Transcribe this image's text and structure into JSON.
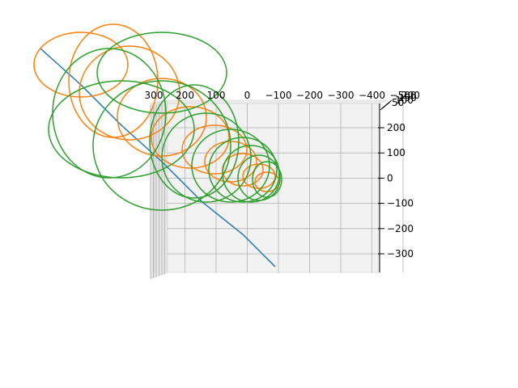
{
  "chart_data": {
    "type": "line",
    "projection": "3d",
    "title": "",
    "xlabel": "",
    "ylabel": "",
    "zlabel": "",
    "grid": true,
    "x_ticks": [
      "300",
      "200",
      "100",
      "0",
      "−100",
      "−200",
      "−300",
      "−400",
      "−500"
    ],
    "z_ticks": [
      "200",
      "100",
      "0",
      "−100",
      "−200",
      "−300"
    ],
    "depth_ticks": [
      "50",
      "100",
      "150",
      "200"
    ],
    "series": [
      {
        "color": "#1f77b4",
        "shape": "straight trajectory",
        "points": [
          [
            340,
            330
          ],
          [
            300,
            290
          ],
          [
            250,
            250
          ],
          [
            200,
            200
          ],
          [
            150,
            155
          ],
          [
            100,
            105
          ],
          [
            50,
            60
          ]
        ]
      },
      {
        "color": "#ff7f0e",
        "shape": "spiral trajectory",
        "loops": [
          [
            330,
            225,
            15,
            12
          ],
          [
            320,
            218,
            20,
            15
          ],
          [
            300,
            210,
            25,
            20
          ],
          [
            285,
            200,
            32,
            25
          ],
          [
            265,
            185,
            40,
            30
          ],
          [
            235,
            170,
            48,
            38
          ],
          [
            200,
            145,
            55,
            48
          ],
          [
            160,
            115,
            62,
            58
          ],
          [
            140,
            100,
            55,
            70
          ],
          [
            100,
            80,
            58,
            40
          ]
        ]
      },
      {
        "color": "#2ca02c",
        "shape": "spiral trajectory",
        "loops": [
          [
            330,
            222,
            18,
            22
          ],
          [
            320,
            220,
            26,
            28
          ],
          [
            310,
            215,
            35,
            35
          ],
          [
            300,
            210,
            42,
            40
          ],
          [
            285,
            205,
            48,
            45
          ],
          [
            255,
            195,
            55,
            55
          ],
          [
            240,
            175,
            55,
            70
          ],
          [
            200,
            180,
            85,
            80
          ],
          [
            150,
            160,
            90,
            60
          ],
          [
            135,
            140,
            70,
            80
          ],
          [
            200,
            90,
            80,
            50
          ]
        ]
      }
    ]
  }
}
